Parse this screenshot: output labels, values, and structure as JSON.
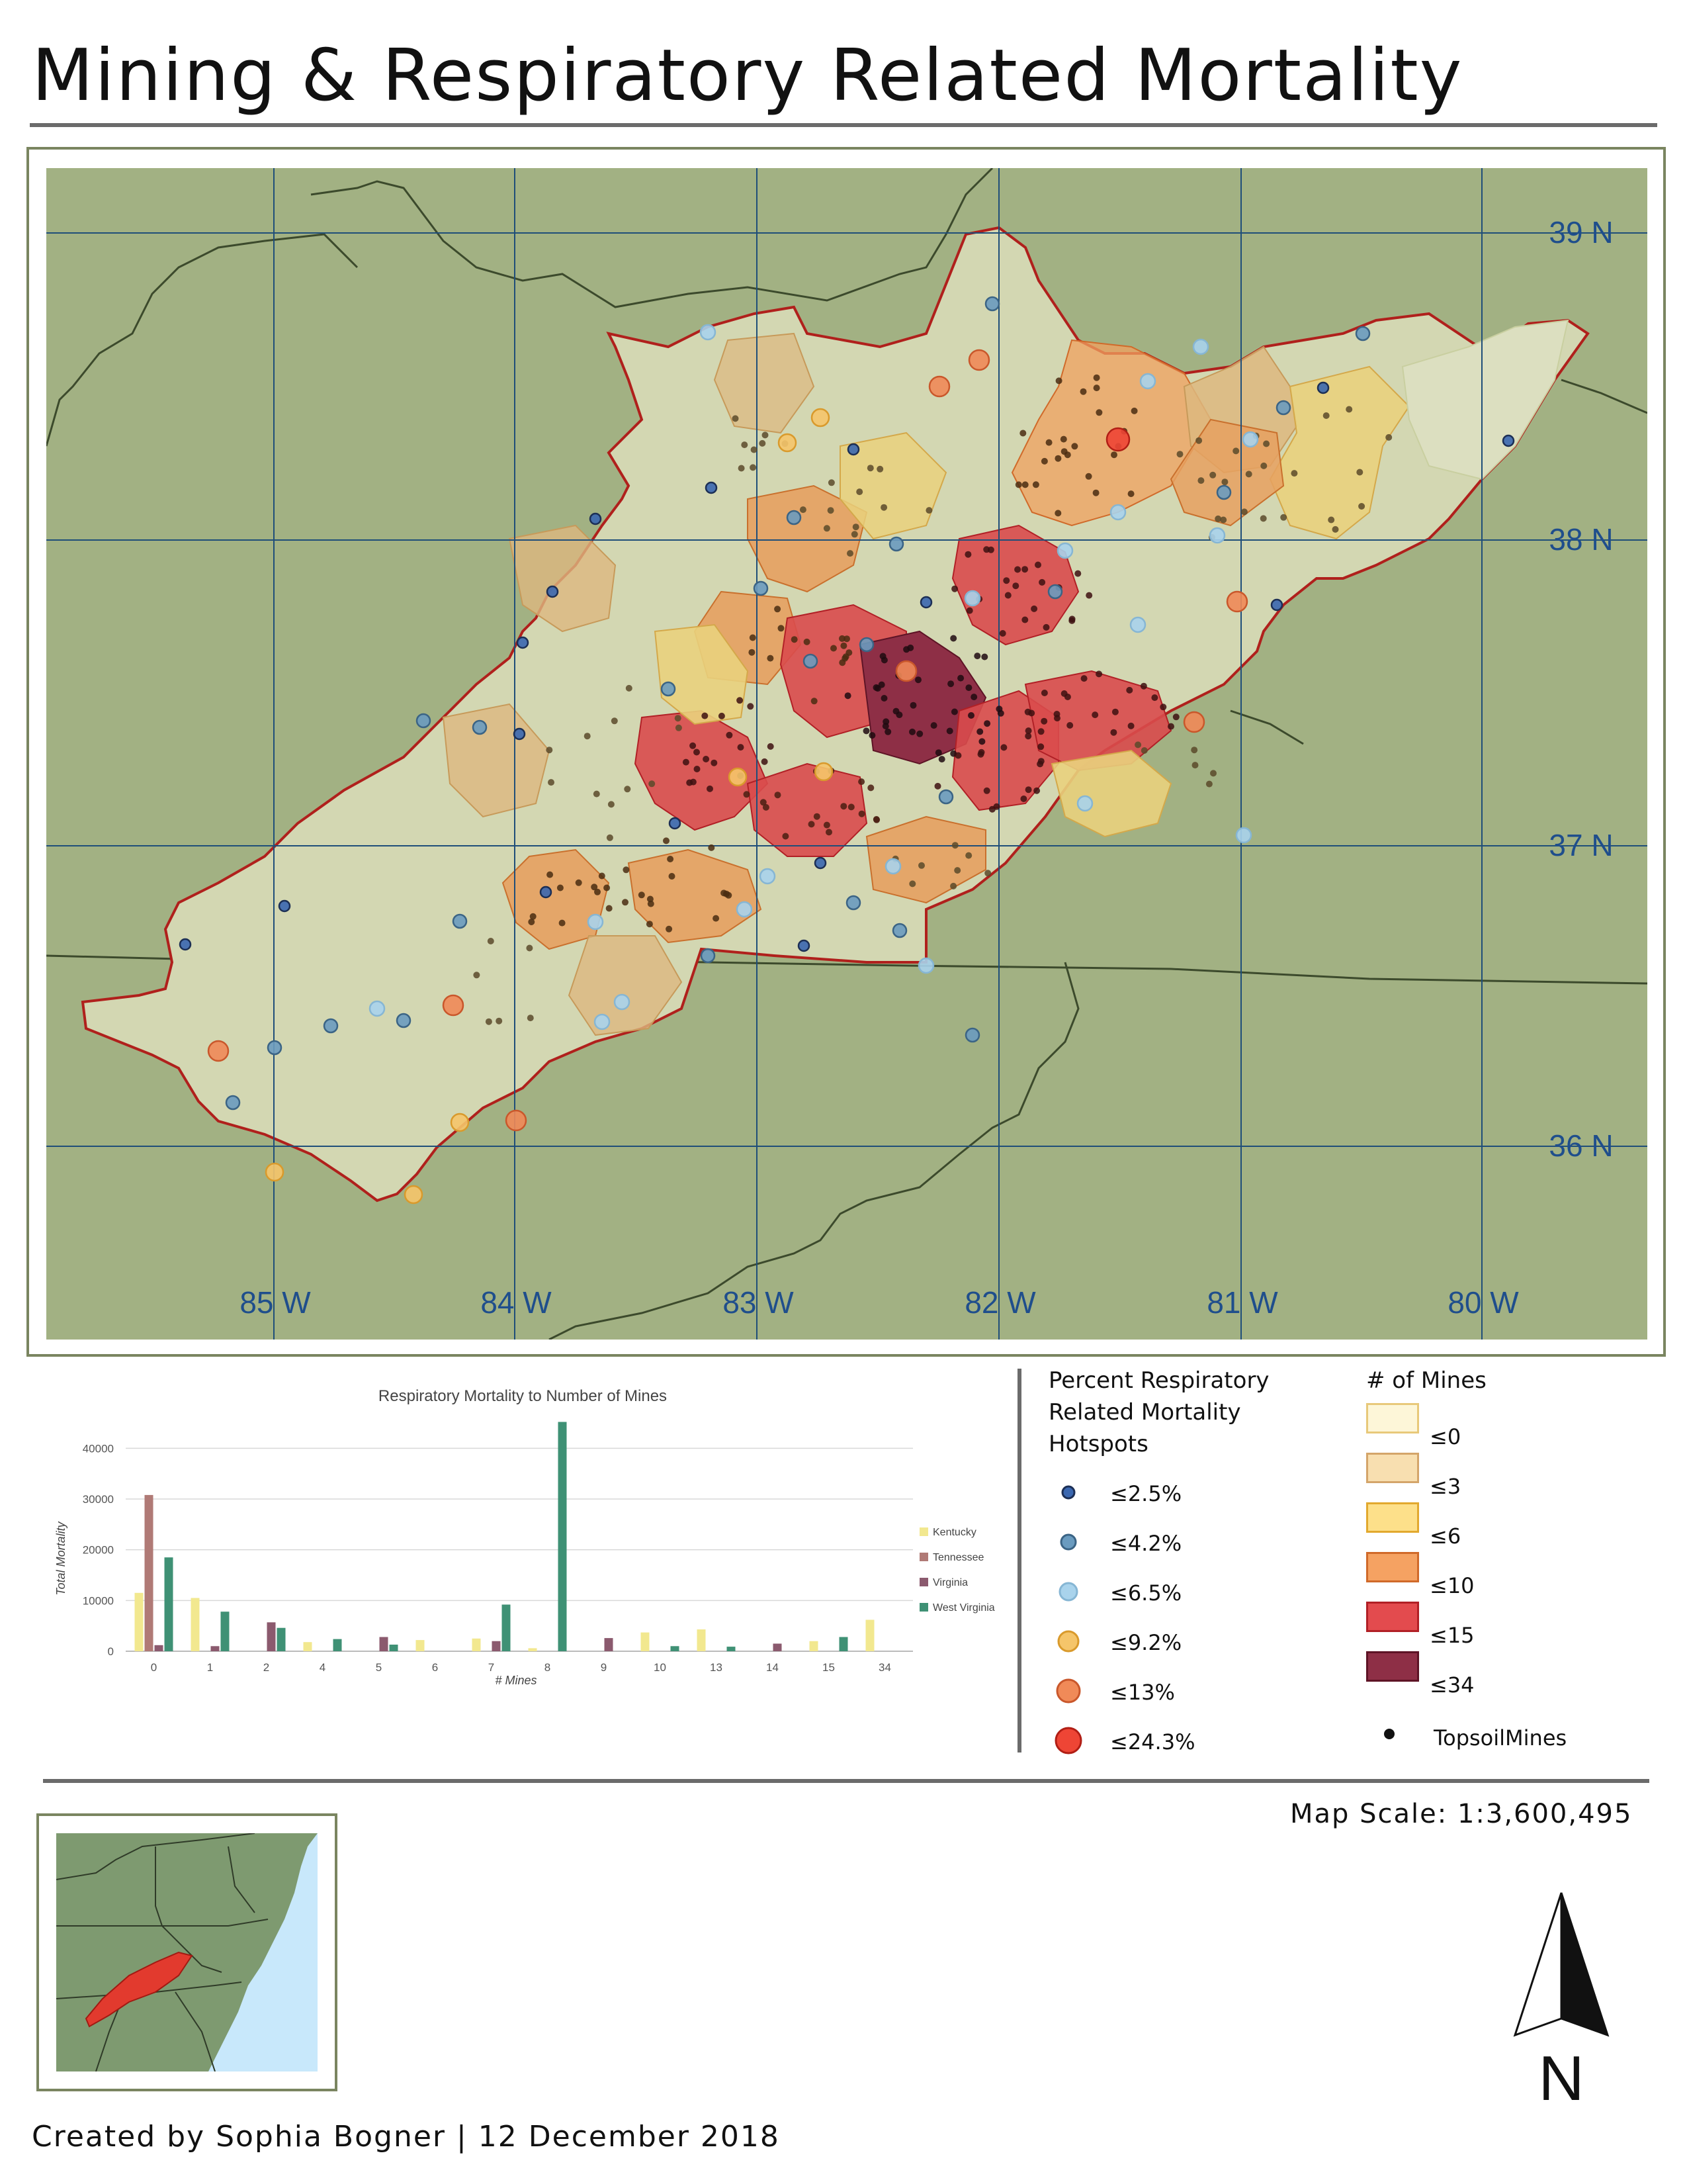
{
  "title": "Mining & Respiratory Related Mortality",
  "map": {
    "latitude_labels": [
      "39 N",
      "38 N",
      "37 N",
      "36 N"
    ],
    "longitude_labels": [
      "85 W",
      "84 W",
      "83 W",
      "82 W",
      "81 W",
      "80 W"
    ],
    "colors": {
      "background": "#a2b183",
      "graticule": "#1f4e79",
      "label": "#1f4e8c",
      "region_outline": "#b0201c",
      "state_line": "#3c4a2c"
    },
    "hotspot_symbols": [
      {
        "class": "≤2.5%",
        "count": 22
      },
      {
        "class": "≤4.2%",
        "count": 20
      },
      {
        "class": "≤6.5%",
        "count": 18
      },
      {
        "class": "≤9.2%",
        "count": 10
      },
      {
        "class": "≤13%",
        "count": 7
      },
      {
        "class": "≤24.3%",
        "count": 1
      }
    ]
  },
  "chart_data": {
    "type": "bar",
    "title": "Respiratory Mortality to Number of Mines",
    "xlabel": "# Mines",
    "ylabel": "Total Mortality",
    "categories": [
      "0",
      "1",
      "2",
      "4",
      "5",
      "6",
      "7",
      "8",
      "9",
      "10",
      "13",
      "14",
      "15",
      "34"
    ],
    "ylim": [
      0,
      45000
    ],
    "yticks": [
      "0",
      "10000",
      "20000",
      "30000",
      "40000"
    ],
    "legend_position": "right",
    "series": [
      {
        "name": "Kentucky",
        "color": "#f2e88f",
        "values": [
          11500,
          10500,
          0,
          1800,
          0,
          2200,
          2500,
          600,
          0,
          3700,
          4300,
          0,
          2000,
          6200
        ]
      },
      {
        "name": "Tennessee",
        "color": "#b07a76",
        "values": [
          30800,
          0,
          0,
          0,
          0,
          0,
          0,
          0,
          0,
          0,
          0,
          0,
          0,
          0
        ]
      },
      {
        "name": "Virginia",
        "color": "#8b5a6e",
        "values": [
          1200,
          1000,
          5700,
          0,
          2800,
          0,
          2000,
          0,
          2600,
          0,
          0,
          1500,
          0,
          0
        ]
      },
      {
        "name": "West Virginia",
        "color": "#3f9175",
        "values": [
          18500,
          7800,
          4600,
          2400,
          1300,
          0,
          9200,
          45200,
          0,
          1000,
          900,
          0,
          2800,
          0
        ]
      }
    ]
  },
  "legend": {
    "hotspot_title": "Percent Respiratory Related Mortality Hotspots",
    "hotspot_items": [
      {
        "label": "≤2.5%",
        "color": "#3a67b0",
        "stroke": "#1c2f55"
      },
      {
        "label": "≤4.2%",
        "color": "#6a9bbf",
        "stroke": "#3b6485"
      },
      {
        "label": "≤6.5%",
        "color": "#a9d3ec",
        "stroke": "#86b6d4"
      },
      {
        "label": "≤9.2%",
        "color": "#f5c56a",
        "stroke": "#d99a2c"
      },
      {
        "label": "≤13%",
        "color": "#f08a58",
        "stroke": "#c9572b"
      },
      {
        "label": "≤24.3%",
        "color": "#ee4535",
        "stroke": "#b11e15"
      }
    ],
    "mines_title": "# of Mines",
    "mines_items": [
      {
        "label": "≤0",
        "color": "#fdf6d8",
        "stroke": "#e8c97a"
      },
      {
        "label": "≤3",
        "color": "#f8dfb0",
        "stroke": "#d4a56a"
      },
      {
        "label": "≤6",
        "color": "#fde08a",
        "stroke": "#e2a92f"
      },
      {
        "label": "≤10",
        "color": "#f5a262",
        "stroke": "#d06a2a"
      },
      {
        "label": "≤15",
        "color": "#e34b4e",
        "stroke": "#b12026"
      },
      {
        "label": "≤34",
        "color": "#8e2f46",
        "stroke": "#5e1426"
      }
    ],
    "topsoil_label": "TopsoilMines"
  },
  "map_scale": "Map Scale: 1:3,600,495",
  "north_label": "N",
  "credit": "Created by Sophia Bogner | 12 December 2018"
}
